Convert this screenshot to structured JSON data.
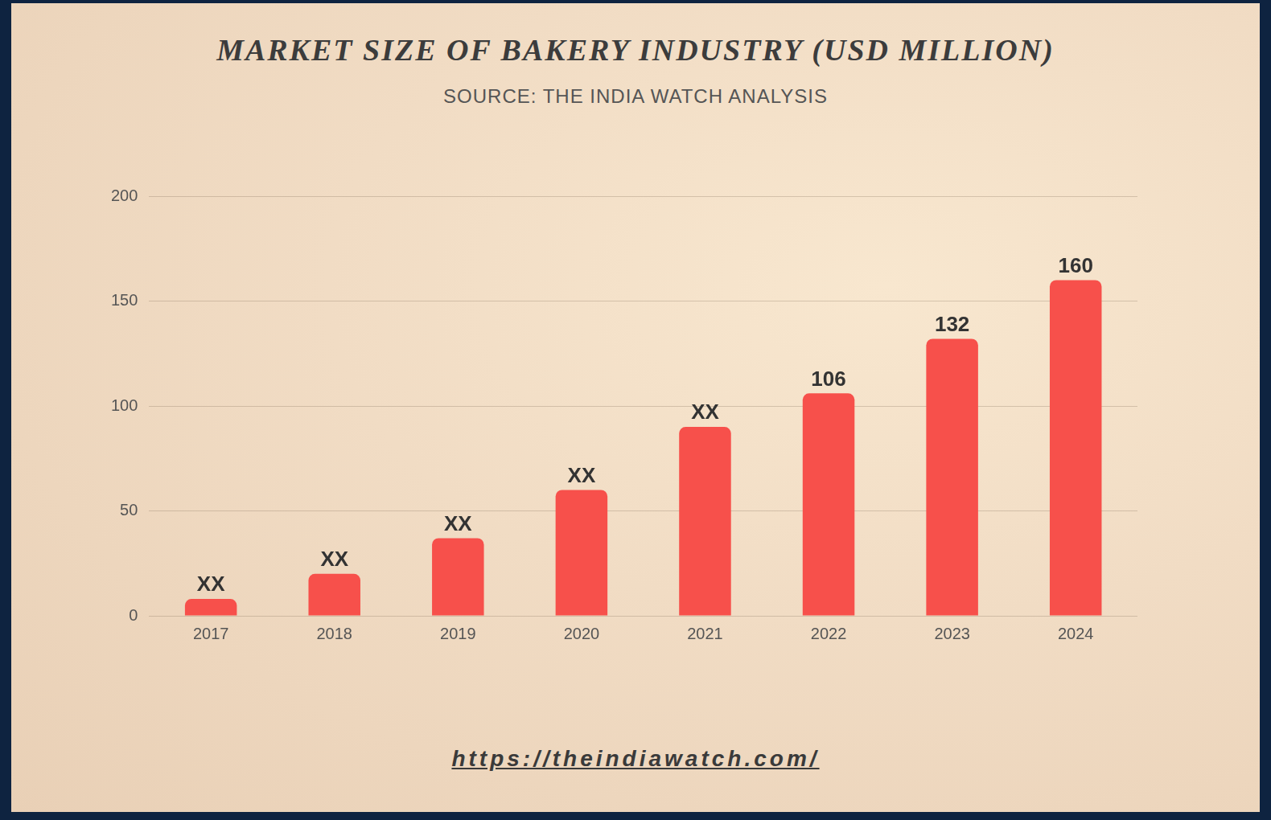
{
  "chart_data": {
    "type": "bar",
    "title": "MARKET SIZE OF BAKERY INDUSTRY (USD MILLION)",
    "subtitle": "SOURCE: THE INDIA WATCH ANALYSIS",
    "footer": "https://theindiawatch.com/",
    "categories": [
      "2017",
      "2018",
      "2019",
      "2020",
      "2021",
      "2022",
      "2023",
      "2024"
    ],
    "values": [
      8,
      20,
      37,
      60,
      90,
      106,
      132,
      160
    ],
    "value_labels": [
      "XX",
      "XX",
      "XX",
      "XX",
      "XX",
      "106",
      "132",
      "160"
    ],
    "color": "#f7504b",
    "ylim": [
      0,
      200
    ],
    "yticks": [
      0,
      50,
      100,
      150,
      200
    ],
    "grid": true,
    "data_labels": true
  }
}
